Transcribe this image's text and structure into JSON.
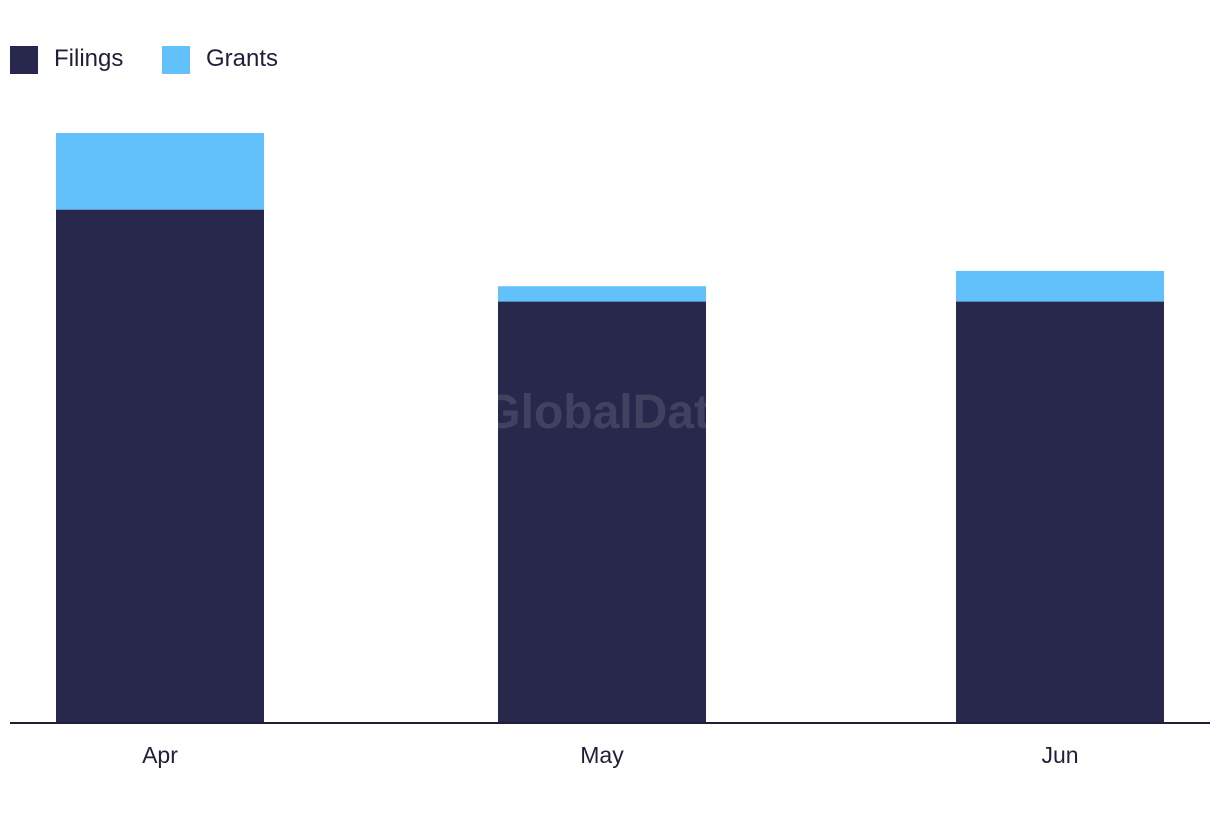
{
  "chart_data": {
    "type": "bar",
    "stacked": true,
    "categories": [
      "Apr",
      "May",
      "Jun"
    ],
    "series": [
      {
        "name": "Filings",
        "values": [
          67,
          55,
          55
        ],
        "color": "#27284b"
      },
      {
        "name": "Grants",
        "values": [
          10,
          2,
          4
        ],
        "color": "#62c0fa"
      }
    ],
    "title": "",
    "xlabel": "",
    "ylabel": "",
    "ylim": [
      0,
      80
    ],
    "grid": false,
    "legend": "top-left"
  },
  "watermark": "GlobalData"
}
